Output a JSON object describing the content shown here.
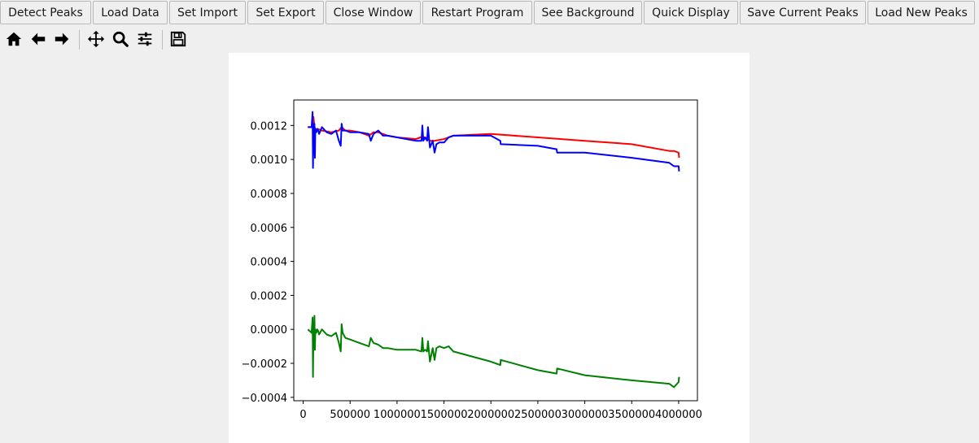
{
  "toolbar_buttons": [
    {
      "label": "Detect Peaks"
    },
    {
      "label": "Load Data"
    },
    {
      "label": "Set Import"
    },
    {
      "label": "Set Export"
    },
    {
      "label": "Close Window"
    },
    {
      "label": "Restart Program"
    },
    {
      "label": "See Background"
    },
    {
      "label": "Quick Display"
    },
    {
      "label": "Save Current Peaks"
    },
    {
      "label": "Load New Peaks"
    }
  ],
  "nav_tools": [
    {
      "icon": "home-icon"
    },
    {
      "icon": "back-arrow-icon"
    },
    {
      "icon": "forward-arrow-icon"
    },
    {
      "icon": "pan-icon"
    },
    {
      "icon": "zoom-icon"
    },
    {
      "icon": "configure-subplots-icon"
    },
    {
      "icon": "save-icon"
    }
  ],
  "chart_data": {
    "type": "line",
    "xlim": [
      -100000,
      4200000
    ],
    "ylim": [
      -0.00042,
      0.00135
    ],
    "xticks": [
      0,
      500000,
      1000000,
      1500000,
      2000000,
      2500000,
      3000000,
      3500000,
      4000000
    ],
    "xtick_labels": [
      "0",
      "500000",
      "1000000",
      "1500000",
      "2000000",
      "2500000",
      "3000000",
      "3500000",
      "4000000"
    ],
    "yticks": [
      -0.0004,
      -0.0002,
      0.0,
      0.0002,
      0.0004,
      0.0006,
      0.0008,
      0.001,
      0.0012
    ],
    "ytick_labels": [
      "−0.0004",
      "−0.0002",
      "0.0000",
      "0.0002",
      "0.0004",
      "0.0006",
      "0.0008",
      "0.0010",
      "0.0012"
    ],
    "grid": false,
    "series": [
      {
        "color": "#ff0000",
        "x": [
          50000,
          100000,
          110000,
          120000,
          130000,
          140000,
          150000,
          200000,
          300000,
          380000,
          410000,
          450000,
          500000,
          600000,
          700000,
          750000,
          800000,
          900000,
          1000000,
          1200000,
          1250000,
          1300000,
          1350000,
          1400000,
          1500000,
          1600000,
          2000000,
          2500000,
          3000000,
          3500000,
          3900000,
          3950000,
          4000000,
          4005000
        ],
        "y": [
          0.00119,
          0.00119,
          0.00125,
          0.00119,
          0.00118,
          0.00117,
          0.00118,
          0.00117,
          0.00116,
          0.00117,
          0.00119,
          0.00117,
          0.00117,
          0.00116,
          0.00114,
          0.00116,
          0.00116,
          0.00114,
          0.00113,
          0.00112,
          0.00113,
          0.00113,
          0.00111,
          0.00111,
          0.00112,
          0.00114,
          0.00115,
          0.00113,
          0.00111,
          0.00109,
          0.00105,
          0.00105,
          0.00104,
          0.00101
        ]
      },
      {
        "color": "#0000ff",
        "x": [
          50000,
          90000,
          100000,
          105000,
          110000,
          115000,
          120000,
          125000,
          130000,
          140000,
          150000,
          160000,
          170000,
          200000,
          250000,
          300000,
          350000,
          380000,
          400000,
          410000,
          420000,
          450000,
          500000,
          600000,
          700000,
          720000,
          750000,
          800000,
          850000,
          900000,
          1000000,
          1200000,
          1260000,
          1270000,
          1280000,
          1300000,
          1320000,
          1330000,
          1350000,
          1380000,
          1400000,
          1420000,
          1450000,
          1500000,
          1550000,
          1600000,
          2000000,
          2100000,
          2105000,
          2500000,
          2700000,
          2705000,
          3000000,
          3500000,
          3900000,
          3950000,
          4000000,
          4005000
        ],
        "y": [
          0.00119,
          0.00119,
          0.00128,
          0.00095,
          0.00115,
          0.00113,
          0.00121,
          0.00101,
          0.00118,
          0.00116,
          0.00118,
          0.00117,
          0.00115,
          0.00119,
          0.00116,
          0.00115,
          0.00117,
          0.00111,
          0.00108,
          0.00121,
          0.00117,
          0.00117,
          0.00116,
          0.00116,
          0.00115,
          0.00111,
          0.00115,
          0.00117,
          0.00114,
          0.00114,
          0.00113,
          0.00111,
          0.00111,
          0.0012,
          0.00111,
          0.00113,
          0.00111,
          0.00119,
          0.00107,
          0.00111,
          0.00104,
          0.00109,
          0.0011,
          0.0011,
          0.00113,
          0.00114,
          0.00114,
          0.00111,
          0.00109,
          0.00108,
          0.00106,
          0.00104,
          0.00104,
          0.00101,
          0.00098,
          0.00096,
          0.00096,
          0.00093
        ]
      },
      {
        "color": "#008000",
        "x": [
          50000,
          90000,
          100000,
          105000,
          110000,
          115000,
          120000,
          125000,
          130000,
          140000,
          150000,
          160000,
          170000,
          200000,
          250000,
          300000,
          350000,
          380000,
          400000,
          410000,
          420000,
          450000,
          500000,
          600000,
          700000,
          720000,
          750000,
          800000,
          850000,
          900000,
          1000000,
          1200000,
          1260000,
          1270000,
          1280000,
          1300000,
          1320000,
          1330000,
          1350000,
          1380000,
          1400000,
          1420000,
          1450000,
          1500000,
          1550000,
          1600000,
          2000000,
          2100000,
          2105000,
          2500000,
          2700000,
          2705000,
          3000000,
          3500000,
          3900000,
          3950000,
          4000000,
          4005000
        ],
        "y": [
          0.0,
          -2e-05,
          7e-05,
          -0.00028,
          0.0,
          -2e-05,
          8e-05,
          -0.00012,
          0.0,
          -2e-05,
          0.0,
          -1e-05,
          -3e-05,
          0.0,
          -3e-05,
          -4e-05,
          -2e-05,
          -8e-05,
          -0.00013,
          3e-05,
          -2e-05,
          -5e-05,
          -6e-05,
          -8e-05,
          -0.0001,
          -5e-05,
          -8e-05,
          -9e-05,
          -0.00011,
          -0.00011,
          -0.00012,
          -0.00012,
          -0.00013,
          -5e-05,
          -0.00013,
          -0.00012,
          -0.00013,
          -7e-05,
          -0.00019,
          -0.00011,
          -0.00018,
          -0.00011,
          -0.0001,
          -0.00011,
          -0.0001,
          -0.00013,
          -0.00019,
          -0.00021,
          -0.00018,
          -0.00024,
          -0.00026,
          -0.00023,
          -0.00027,
          -0.0003,
          -0.00032,
          -0.00034,
          -0.00031,
          -0.00028
        ]
      }
    ]
  }
}
